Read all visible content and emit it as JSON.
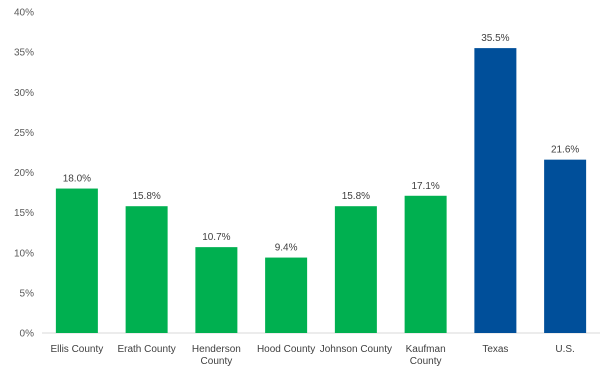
{
  "chart_data": {
    "type": "bar",
    "categories": [
      [
        "Ellis County"
      ],
      [
        "Erath County"
      ],
      [
        "Henderson",
        "County"
      ],
      [
        "Hood County"
      ],
      [
        "Johnson County"
      ],
      [
        "Kaufman",
        "County"
      ],
      [
        "Texas"
      ],
      [
        "U.S."
      ]
    ],
    "values": [
      18.0,
      15.8,
      10.7,
      9.4,
      15.8,
      17.1,
      35.5,
      21.6
    ],
    "data_labels": [
      "18.0%",
      "15.8%",
      "10.7%",
      "9.4%",
      "15.8%",
      "17.1%",
      "35.5%",
      "21.6%"
    ],
    "bar_colors": [
      "#00b050",
      "#00b050",
      "#00b050",
      "#00b050",
      "#00b050",
      "#00b050",
      "#004f9a",
      "#004f9a"
    ],
    "ylim": [
      0,
      40
    ],
    "yticks": [
      0,
      5,
      10,
      15,
      20,
      25,
      30,
      35,
      40
    ],
    "ytick_labels": [
      "0%",
      "5%",
      "10%",
      "15%",
      "20%",
      "25%",
      "30%",
      "35%",
      "40%"
    ],
    "title": "",
    "xlabel": "",
    "ylabel": "",
    "grid": false,
    "legend": false
  }
}
